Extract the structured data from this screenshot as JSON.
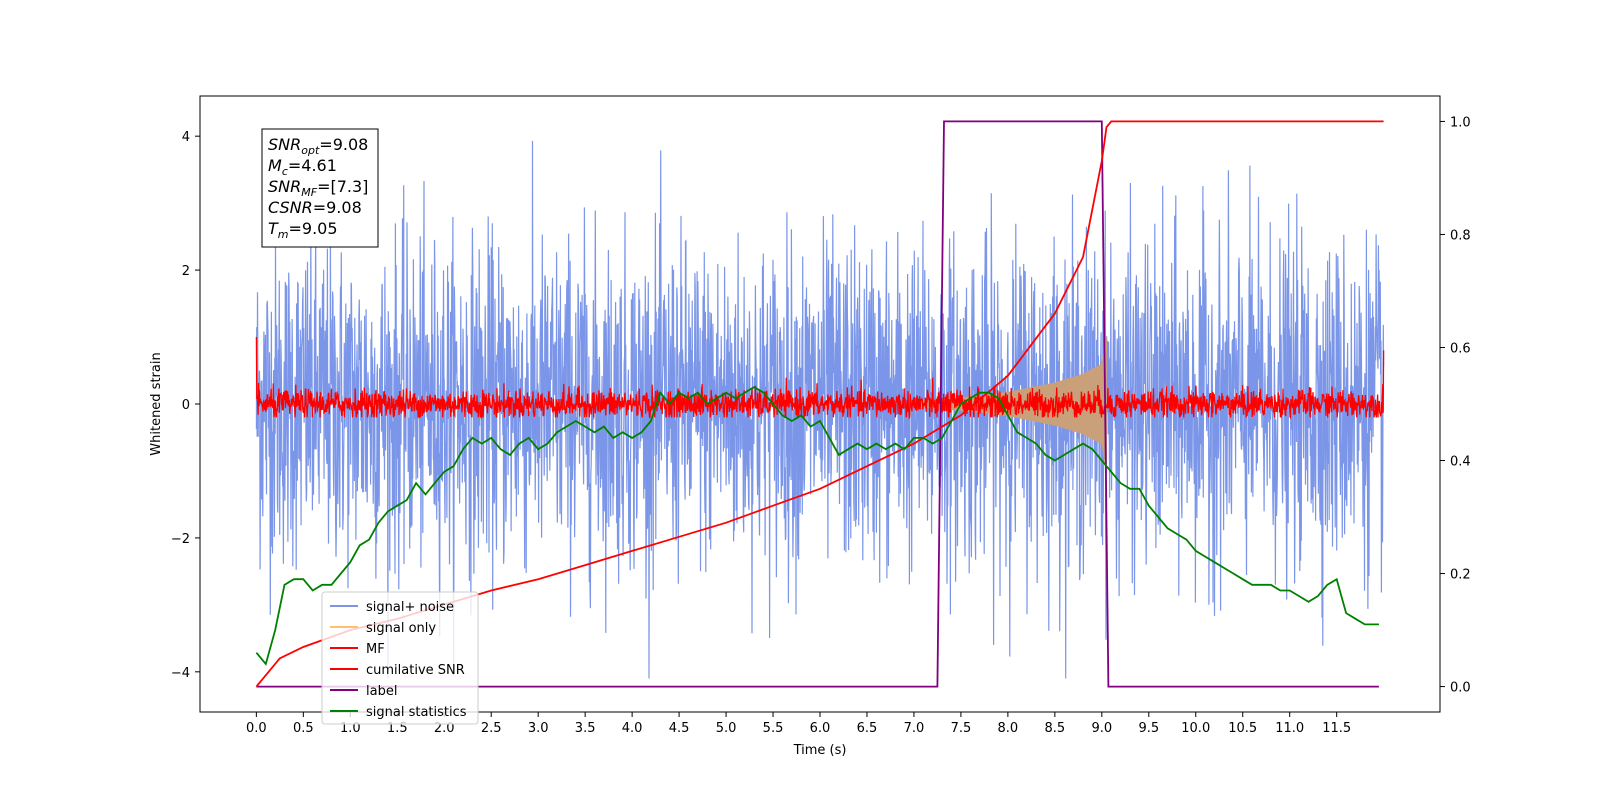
{
  "chart_data": {
    "type": "line",
    "xlabel": "Time (s)",
    "ylabel": "Whitened strain",
    "xlim": [
      -0.6,
      12.6
    ],
    "ylim": [
      -4.6,
      4.6
    ],
    "y2lim": [
      -0.045,
      1.045
    ],
    "x_ticks": [
      0.0,
      0.5,
      1.0,
      1.5,
      2.0,
      2.5,
      3.0,
      3.5,
      4.0,
      4.5,
      5.0,
      5.5,
      6.0,
      6.5,
      7.0,
      7.5,
      8.0,
      8.5,
      9.0,
      9.5,
      10.0,
      10.5,
      11.0,
      11.5
    ],
    "x_tick_labels": [
      "0.0",
      "0.5",
      "1.0",
      "1.5",
      "2.0",
      "2.5",
      "3.0",
      "3.5",
      "4.0",
      "4.5",
      "5.0",
      "5.5",
      "6.0",
      "6.5",
      "7.0",
      "7.5",
      "8.0",
      "8.5",
      "9.0",
      "9.5",
      "10.0",
      "10.5",
      "11.0",
      "11.5"
    ],
    "y_ticks": [
      -4,
      -2,
      0,
      2,
      4
    ],
    "y_tick_labels": [
      "−4",
      "−2",
      "0",
      "2",
      "4"
    ],
    "y2_ticks": [
      0.0,
      0.2,
      0.4,
      0.6,
      0.8,
      1.0
    ],
    "y2_tick_labels": [
      "0.0",
      "0.2",
      "0.4",
      "0.6",
      "0.8",
      "1.0"
    ],
    "legend_position": "lower-left",
    "grid": false,
    "annotation": [
      {
        "base": "SNR",
        "sub": "opt",
        "value": "=9.08"
      },
      {
        "base": "M",
        "sub": "c",
        "value": "=4.61"
      },
      {
        "base": "SNR",
        "sub": "MF",
        "value": "=[7.3]"
      },
      {
        "base": "CSNR",
        "sub": "",
        "value": "=9.08"
      },
      {
        "base": "T",
        "sub": "m",
        "value": "=9.05"
      }
    ],
    "series": [
      {
        "name": "signal+ noise",
        "axis": "left",
        "color": "#7b96e8",
        "style": "noise",
        "x_range": [
          0.0,
          12.0
        ],
        "center": 0.0,
        "typical_amplitude": 1.2,
        "peak_max": 4.2,
        "peak_min": -4.1
      },
      {
        "name": "signal only",
        "axis": "left",
        "color": "#ffbf70",
        "style": "chirp",
        "x_range": [
          7.0,
          9.05
        ],
        "envelope_x": [
          7.0,
          7.5,
          8.0,
          8.5,
          8.8,
          9.0,
          9.05
        ],
        "envelope": [
          0.05,
          0.1,
          0.18,
          0.32,
          0.45,
          0.6,
          1.0
        ]
      },
      {
        "name": "MF",
        "axis": "left",
        "color": "#ff0000",
        "style": "noise",
        "x_range": [
          0.0,
          12.0
        ],
        "center": 0.0,
        "typical_amplitude": 0.2,
        "peak_max": 0.6,
        "peak_min": -0.2
      },
      {
        "name": "cumilative SNR",
        "axis": "right",
        "color": "#ff0000",
        "style": "line",
        "x": [
          0.0,
          0.25,
          0.5,
          1.0,
          1.5,
          2.0,
          2.5,
          3.0,
          3.5,
          4.0,
          4.5,
          5.0,
          5.5,
          6.0,
          6.5,
          7.0,
          7.5,
          8.0,
          8.5,
          8.8,
          9.0,
          9.05,
          9.1,
          12.0
        ],
        "y": [
          0.0,
          0.05,
          0.07,
          0.1,
          0.12,
          0.145,
          0.17,
          0.19,
          0.215,
          0.24,
          0.265,
          0.29,
          0.32,
          0.35,
          0.39,
          0.43,
          0.48,
          0.55,
          0.66,
          0.76,
          0.93,
          0.99,
          1.0,
          1.0
        ]
      },
      {
        "name": "label",
        "axis": "right",
        "color": "#800080",
        "style": "line",
        "x": [
          0.0,
          7.25,
          7.32,
          9.0,
          9.07,
          11.95
        ],
        "y": [
          0.0,
          0.0,
          1.0,
          1.0,
          0.0,
          0.0
        ]
      },
      {
        "name": "signal statistics",
        "axis": "right",
        "color": "#008000",
        "style": "line",
        "x": [
          0.0,
          0.1,
          0.2,
          0.3,
          0.4,
          0.5,
          0.6,
          0.7,
          0.8,
          0.9,
          1.0,
          1.1,
          1.2,
          1.3,
          1.4,
          1.5,
          1.6,
          1.7,
          1.8,
          1.9,
          2.0,
          2.1,
          2.2,
          2.3,
          2.4,
          2.5,
          2.6,
          2.7,
          2.8,
          2.9,
          3.0,
          3.1,
          3.2,
          3.3,
          3.4,
          3.5,
          3.6,
          3.7,
          3.8,
          3.9,
          4.0,
          4.1,
          4.2,
          4.3,
          4.4,
          4.5,
          4.6,
          4.7,
          4.8,
          4.9,
          5.0,
          5.1,
          5.2,
          5.3,
          5.4,
          5.5,
          5.6,
          5.7,
          5.8,
          5.9,
          6.0,
          6.1,
          6.2,
          6.3,
          6.4,
          6.5,
          6.6,
          6.7,
          6.8,
          6.9,
          7.0,
          7.1,
          7.2,
          7.3,
          7.4,
          7.5,
          7.6,
          7.7,
          7.8,
          7.9,
          8.0,
          8.1,
          8.2,
          8.3,
          8.4,
          8.5,
          8.6,
          8.7,
          8.8,
          8.9,
          9.0,
          9.1,
          9.2,
          9.3,
          9.4,
          9.5,
          9.6,
          9.7,
          9.8,
          9.9,
          10.0,
          10.1,
          10.2,
          10.3,
          10.4,
          10.5,
          10.6,
          10.7,
          10.8,
          10.9,
          11.0,
          11.1,
          11.2,
          11.3,
          11.4,
          11.5,
          11.6,
          11.7,
          11.8,
          11.9,
          11.95
        ],
        "y": [
          0.06,
          0.04,
          0.1,
          0.18,
          0.19,
          0.19,
          0.17,
          0.18,
          0.18,
          0.2,
          0.22,
          0.25,
          0.26,
          0.29,
          0.31,
          0.32,
          0.33,
          0.36,
          0.34,
          0.36,
          0.38,
          0.39,
          0.42,
          0.44,
          0.43,
          0.44,
          0.42,
          0.41,
          0.43,
          0.44,
          0.42,
          0.43,
          0.45,
          0.46,
          0.47,
          0.46,
          0.45,
          0.46,
          0.44,
          0.45,
          0.44,
          0.45,
          0.47,
          0.52,
          0.5,
          0.52,
          0.51,
          0.52,
          0.5,
          0.51,
          0.52,
          0.51,
          0.52,
          0.53,
          0.52,
          0.5,
          0.48,
          0.47,
          0.48,
          0.46,
          0.47,
          0.44,
          0.41,
          0.42,
          0.43,
          0.42,
          0.43,
          0.42,
          0.43,
          0.42,
          0.44,
          0.44,
          0.43,
          0.44,
          0.47,
          0.5,
          0.51,
          0.52,
          0.52,
          0.51,
          0.48,
          0.45,
          0.44,
          0.43,
          0.41,
          0.4,
          0.41,
          0.42,
          0.43,
          0.42,
          0.4,
          0.38,
          0.36,
          0.35,
          0.35,
          0.32,
          0.3,
          0.28,
          0.27,
          0.26,
          0.24,
          0.23,
          0.22,
          0.21,
          0.2,
          0.19,
          0.18,
          0.18,
          0.18,
          0.17,
          0.17,
          0.16,
          0.15,
          0.16,
          0.18,
          0.19,
          0.13,
          0.12,
          0.11,
          0.11,
          0.11
        ]
      }
    ]
  }
}
